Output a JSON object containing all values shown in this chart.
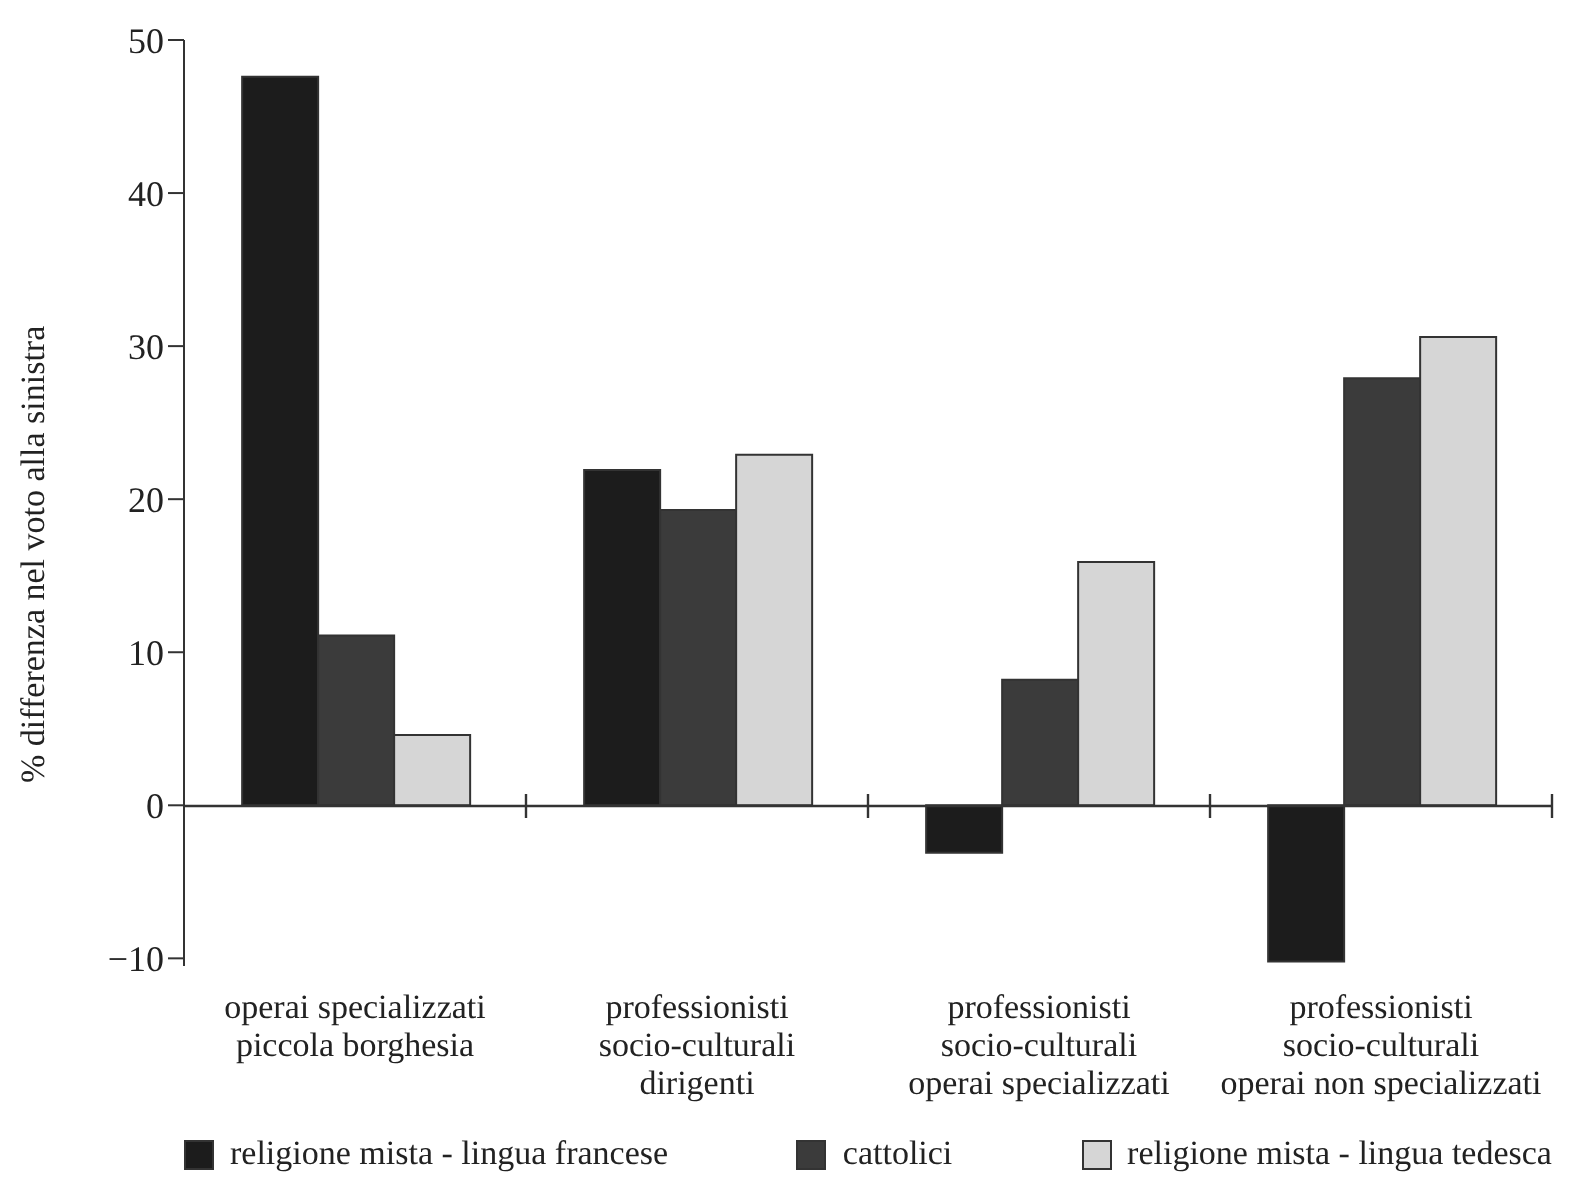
{
  "chart_data": {
    "type": "bar",
    "ylabel": "% differenza nel voto alla sinistra",
    "categories": [
      "operai specializzati\npiccola borghesia",
      "professionisti\nsocio-culturali\ndirigenti",
      "professionisti\nsocio-culturali\noperai specializzati",
      "professionisti\nsocio-culturali\noperai non specializzati"
    ],
    "series": [
      {
        "name": "religione mista - lingua francese",
        "color": "#1c1c1c",
        "values": [
          47.6,
          21.9,
          -3.1,
          -10.2
        ]
      },
      {
        "name": "cattolici",
        "color": "#3b3b3b",
        "values": [
          11.1,
          19.3,
          8.2,
          27.9
        ]
      },
      {
        "name": "religione mista - lingua tedesca",
        "color": "#d6d6d6",
        "values": [
          4.6,
          22.9,
          15.9,
          30.6
        ]
      }
    ],
    "ylim": [
      -10.5,
      50
    ],
    "yticks": [
      -10,
      0,
      10,
      20,
      30,
      40,
      50
    ],
    "legend": "bottom"
  }
}
